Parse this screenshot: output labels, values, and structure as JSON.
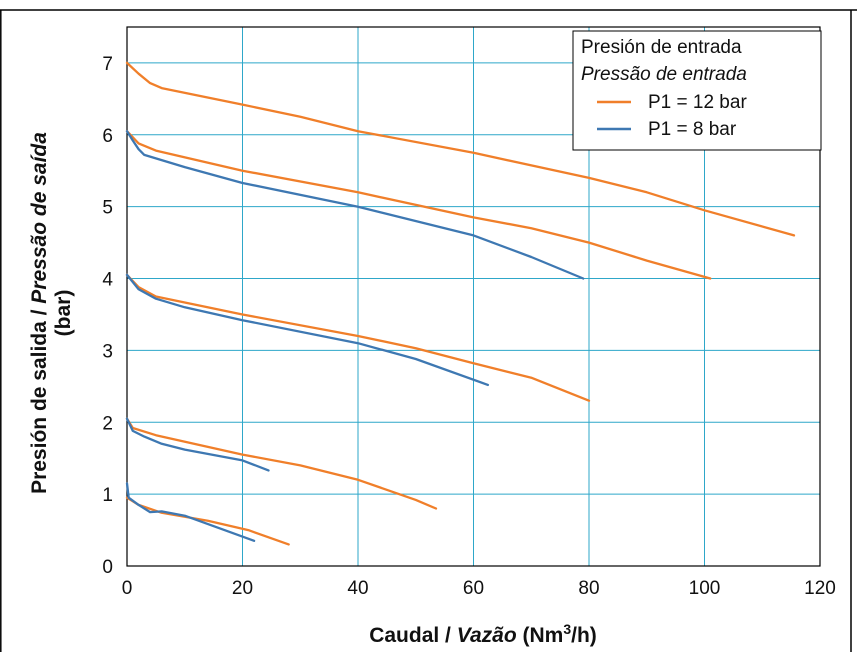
{
  "chart_data": {
    "type": "line",
    "xlabel": {
      "prefix": "Caudal / ",
      "italic": "Vazão",
      "unit_pre": " (Nm",
      "unit_sup": "3",
      "unit_post": "/h)"
    },
    "ylabel": {
      "prefix": "Presión de salida / ",
      "italic": "Pressão de saída",
      "unit": "(bar)"
    },
    "xlim": [
      0,
      120
    ],
    "ylim": [
      0,
      7.5
    ],
    "x_ticks": [
      "0",
      "20",
      "40",
      "60",
      "80",
      "100",
      "120"
    ],
    "y_ticks": [
      "0",
      "1",
      "2",
      "3",
      "4",
      "5",
      "6",
      "7"
    ],
    "x_tick_values": [
      0,
      20,
      40,
      60,
      80,
      100,
      120
    ],
    "y_tick_values": [
      0,
      1,
      2,
      3,
      4,
      5,
      6,
      7
    ],
    "grid": true,
    "legend": {
      "title": "Presión de entrada",
      "subtitle": "Pressão de entrada",
      "placement": "top-right",
      "entries": [
        {
          "label": "P1 = 12 bar",
          "color": "#F07F2A"
        },
        {
          "label": "P1 = 8 bar",
          "color": "#3E78B2"
        }
      ]
    },
    "series": [
      {
        "group": "P1 = 12 bar",
        "color": "#F07F2A",
        "points": [
          [
            0,
            7.0
          ],
          [
            2,
            6.85
          ],
          [
            4,
            6.72
          ],
          [
            6,
            6.65
          ],
          [
            20,
            6.42
          ],
          [
            30,
            6.25
          ],
          [
            40,
            6.05
          ],
          [
            60,
            5.75
          ],
          [
            80,
            5.4
          ],
          [
            90,
            5.2
          ],
          [
            100,
            4.95
          ],
          [
            115.5,
            4.6
          ]
        ]
      },
      {
        "group": "P1 = 12 bar",
        "color": "#F07F2A",
        "points": [
          [
            0,
            6.05
          ],
          [
            2,
            5.88
          ],
          [
            5,
            5.78
          ],
          [
            20,
            5.5
          ],
          [
            40,
            5.2
          ],
          [
            60,
            4.85
          ],
          [
            70,
            4.7
          ],
          [
            80,
            4.5
          ],
          [
            90,
            4.25
          ],
          [
            101,
            4.0
          ]
        ]
      },
      {
        "group": "P1 = 8 bar",
        "color": "#3E78B2",
        "points": [
          [
            0,
            6.05
          ],
          [
            1,
            5.92
          ],
          [
            2,
            5.8
          ],
          [
            3,
            5.72
          ],
          [
            10,
            5.55
          ],
          [
            20,
            5.33
          ],
          [
            40,
            5.0
          ],
          [
            60,
            4.6
          ],
          [
            70,
            4.3
          ],
          [
            79,
            4.0
          ]
        ]
      },
      {
        "group": "P1 = 12 bar",
        "color": "#F07F2A",
        "points": [
          [
            0,
            4.05
          ],
          [
            2,
            3.88
          ],
          [
            5,
            3.75
          ],
          [
            20,
            3.5
          ],
          [
            40,
            3.2
          ],
          [
            50,
            3.03
          ],
          [
            60,
            2.82
          ],
          [
            70,
            2.62
          ],
          [
            80,
            2.3
          ]
        ]
      },
      {
        "group": "P1 = 8 bar",
        "color": "#3E78B2",
        "points": [
          [
            0,
            4.05
          ],
          [
            2,
            3.85
          ],
          [
            5,
            3.72
          ],
          [
            10,
            3.6
          ],
          [
            20,
            3.42
          ],
          [
            40,
            3.1
          ],
          [
            50,
            2.88
          ],
          [
            62.5,
            2.52
          ]
        ]
      },
      {
        "group": "P1 = 12 bar",
        "color": "#F07F2A",
        "points": [
          [
            0,
            2.05
          ],
          [
            1,
            1.92
          ],
          [
            5,
            1.82
          ],
          [
            20,
            1.55
          ],
          [
            30,
            1.4
          ],
          [
            40,
            1.2
          ],
          [
            50,
            0.92
          ],
          [
            53.5,
            0.8
          ]
        ]
      },
      {
        "group": "P1 = 8 bar",
        "color": "#3E78B2",
        "points": [
          [
            0,
            2.05
          ],
          [
            1,
            1.88
          ],
          [
            3,
            1.8
          ],
          [
            6,
            1.7
          ],
          [
            10,
            1.62
          ],
          [
            20,
            1.47
          ],
          [
            24.5,
            1.33
          ]
        ]
      },
      {
        "group": "P1 = 12 bar",
        "color": "#F07F2A",
        "points": [
          [
            0,
            0.95
          ],
          [
            2,
            0.85
          ],
          [
            6,
            0.74
          ],
          [
            14,
            0.63
          ],
          [
            21,
            0.5
          ],
          [
            22,
            0.47
          ],
          [
            28,
            0.3
          ]
        ]
      },
      {
        "group": "P1 = 8 bar",
        "color": "#3E78B2",
        "points": [
          [
            0,
            1.15
          ],
          [
            0.3,
            0.95
          ],
          [
            2,
            0.85
          ],
          [
            4,
            0.75
          ],
          [
            6,
            0.76
          ],
          [
            10,
            0.7
          ],
          [
            22,
            0.35
          ]
        ]
      }
    ]
  }
}
